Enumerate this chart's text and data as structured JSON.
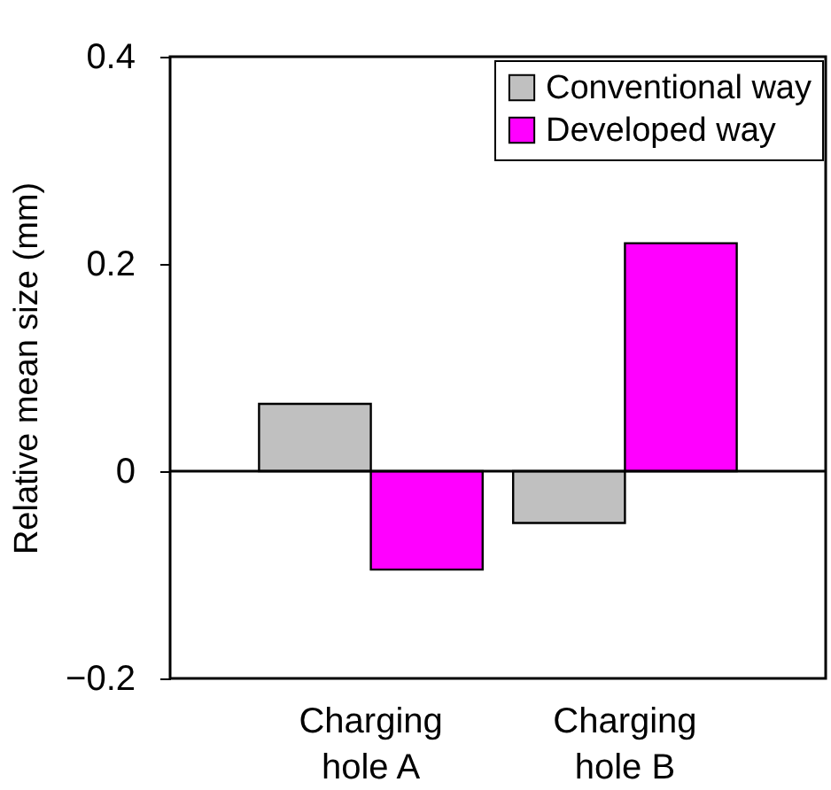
{
  "chart_data": {
    "type": "bar",
    "ylabel": "Relative mean size (mm)",
    "categories": [
      "Charging hole A",
      "Charging hole B"
    ],
    "series": [
      {
        "name": "Conventional way",
        "color": "#c0c0c0",
        "values": [
          0.065,
          -0.05
        ]
      },
      {
        "name": "Developed way",
        "color": "#ff00ff",
        "values": [
          -0.095,
          0.22
        ]
      }
    ],
    "ylim": [
      -0.2,
      0.4
    ],
    "yticks": [
      -0.2,
      0,
      0.2,
      0.4
    ],
    "ref_lines": [
      {
        "axis": "y",
        "value": 0
      }
    ],
    "legend": "top right"
  }
}
